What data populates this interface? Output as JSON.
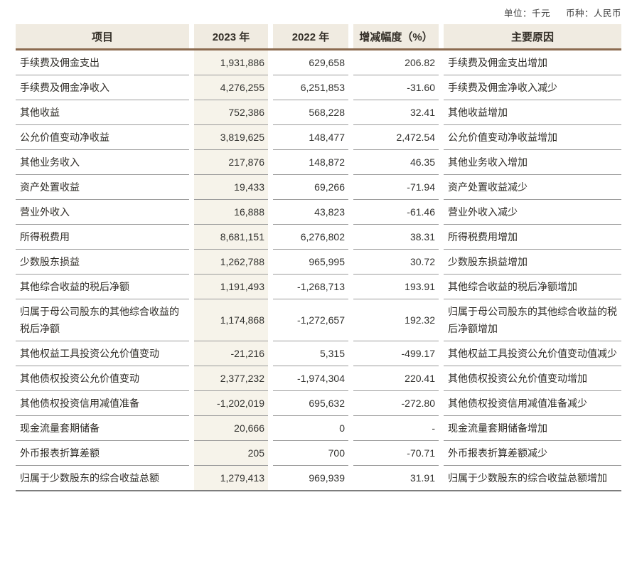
{
  "meta": {
    "unit_label": "单位：千元",
    "currency_label": "币种：人民币"
  },
  "colors": {
    "header_bg": "#f0ebe1",
    "col2023_bg": "#f6f3ea",
    "accent_line": "#8c6b50",
    "row_line": "#9b9b9b",
    "bottom_line": "#7d7d7d"
  },
  "table": {
    "headers": {
      "item": "项目",
      "y2023": "2023 年",
      "y2022": "2022 年",
      "change": "增减幅度（%）",
      "reason": "主要原因"
    },
    "rows": [
      {
        "item": "手续费及佣金支出",
        "y2023": "1,931,886",
        "y2022": "629,658",
        "change": "206.82",
        "reason": "手续费及佣金支出增加"
      },
      {
        "item": "手续费及佣金净收入",
        "y2023": "4,276,255",
        "y2022": "6,251,853",
        "change": "-31.60",
        "reason": "手续费及佣金净收入减少"
      },
      {
        "item": "其他收益",
        "y2023": "752,386",
        "y2022": "568,228",
        "change": "32.41",
        "reason": "其他收益增加"
      },
      {
        "item": "公允价值变动净收益",
        "y2023": "3,819,625",
        "y2022": "148,477",
        "change": "2,472.54",
        "reason": "公允价值变动净收益增加"
      },
      {
        "item": "其他业务收入",
        "y2023": "217,876",
        "y2022": "148,872",
        "change": "46.35",
        "reason": "其他业务收入增加"
      },
      {
        "item": "资产处置收益",
        "y2023": "19,433",
        "y2022": "69,266",
        "change": "-71.94",
        "reason": "资产处置收益减少"
      },
      {
        "item": "营业外收入",
        "y2023": "16,888",
        "y2022": "43,823",
        "change": "-61.46",
        "reason": "营业外收入减少"
      },
      {
        "item": "所得税费用",
        "y2023": "8,681,151",
        "y2022": "6,276,802",
        "change": "38.31",
        "reason": "所得税费用增加"
      },
      {
        "item": "少数股东损益",
        "y2023": "1,262,788",
        "y2022": "965,995",
        "change": "30.72",
        "reason": "少数股东损益增加"
      },
      {
        "item": "其他综合收益的税后净额",
        "y2023": "1,191,493",
        "y2022": "-1,268,713",
        "change": "193.91",
        "reason": "其他综合收益的税后净额增加"
      },
      {
        "item": "归属于母公司股东的其他综合收益的税后净额",
        "y2023": "1,174,868",
        "y2022": "-1,272,657",
        "change": "192.32",
        "reason": "归属于母公司股东的其他综合收益的税后净额增加"
      },
      {
        "item": "其他权益工具投资公允价值变动",
        "y2023": "-21,216",
        "y2022": "5,315",
        "change": "-499.17",
        "reason": "其他权益工具投资公允价值变动值减少"
      },
      {
        "item": "其他债权投资公允价值变动",
        "y2023": "2,377,232",
        "y2022": "-1,974,304",
        "change": "220.41",
        "reason": "其他债权投资公允价值变动增加"
      },
      {
        "item": "其他债权投资信用减值准备",
        "y2023": "-1,202,019",
        "y2022": "695,632",
        "change": "-272.80",
        "reason": "其他债权投资信用减值准备减少"
      },
      {
        "item": "现金流量套期储备",
        "y2023": "20,666",
        "y2022": "0",
        "change": "-",
        "reason": "现金流量套期储备增加"
      },
      {
        "item": "外币报表折算差额",
        "y2023": "205",
        "y2022": "700",
        "change": "-70.71",
        "reason": "外币报表折算差额减少"
      },
      {
        "item": "归属于少数股东的综合收益总额",
        "y2023": "1,279,413",
        "y2022": "969,939",
        "change": "31.91",
        "reason": "归属于少数股东的综合收益总额增加"
      }
    ]
  }
}
